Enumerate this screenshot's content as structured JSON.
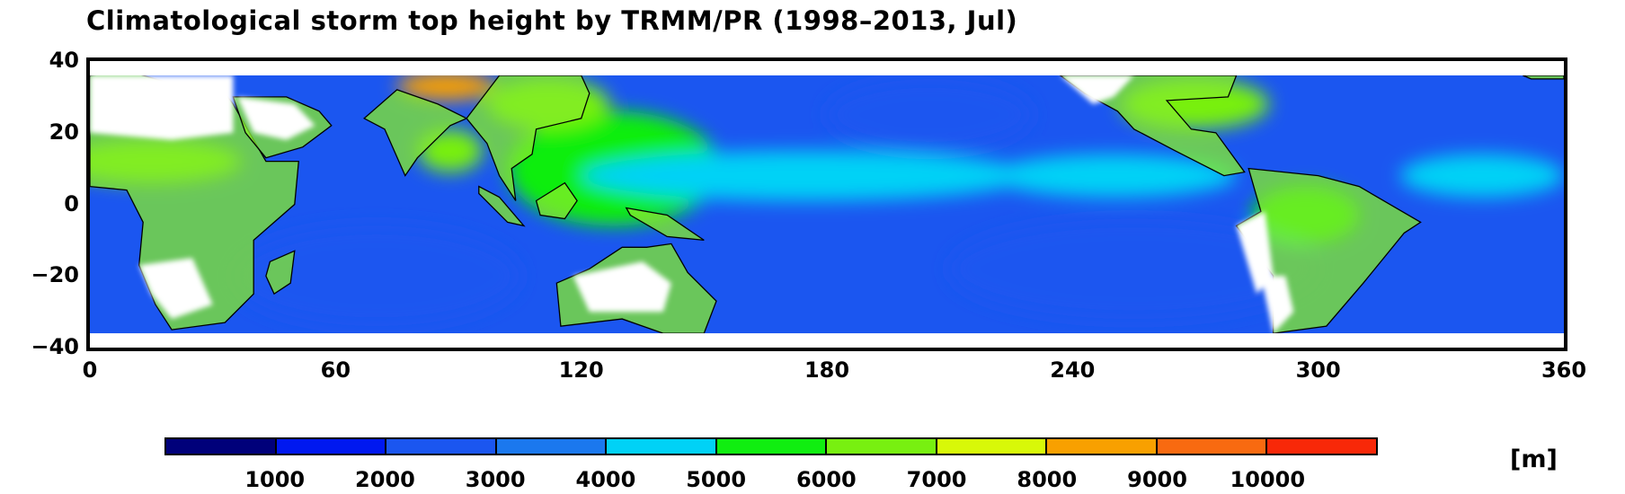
{
  "title": "Climatological storm top height by TRMM/PR (1998–2013, Jul)",
  "map": {
    "lon_range": [
      0,
      360
    ],
    "lat_range": [
      -40,
      40
    ],
    "data_lat_range": [
      -36,
      36
    ],
    "ocean_color": "#1b56f0",
    "land_color": "#ffffff",
    "coastline_color": "#000000"
  },
  "axes": {
    "y_ticks": [
      "40",
      "20",
      "0",
      "−20",
      "−40"
    ],
    "y_values": [
      40,
      20,
      0,
      -20,
      -40
    ],
    "x_ticks": [
      "0",
      "60",
      "120",
      "180",
      "240",
      "300",
      "360"
    ],
    "x_values": [
      0,
      60,
      120,
      180,
      240,
      300,
      360
    ]
  },
  "colorbar": {
    "unit": "[m]",
    "colors": [
      "#00007a",
      "#0018f0",
      "#1b56f0",
      "#1b78ee",
      "#00d2f6",
      "#10ee10",
      "#78f010",
      "#d8f808",
      "#f8a000",
      "#f86a10",
      "#f82808"
    ],
    "labels": [
      "1000",
      "2000",
      "3000",
      "4000",
      "5000",
      "6000",
      "7000",
      "8000",
      "9000",
      "10000"
    ]
  },
  "regions": [
    {
      "name": "warm-pool",
      "lon": 128,
      "lat": 10,
      "rx": 26,
      "ry": 16,
      "color": "#10ee10"
    },
    {
      "name": "itcz-central",
      "lon": 175,
      "lat": 8,
      "rx": 55,
      "ry": 7,
      "color": "#00d2f6"
    },
    {
      "name": "itcz-east",
      "lon": 250,
      "lat": 8,
      "rx": 30,
      "ry": 6,
      "color": "#00d2f6"
    },
    {
      "name": "atlantic-itcz",
      "lon": 340,
      "lat": 8,
      "rx": 20,
      "ry": 6,
      "color": "#00d2f6"
    },
    {
      "name": "south-indian",
      "lon": 70,
      "lat": -20,
      "rx": 35,
      "ry": 14,
      "color": "#1b56f0"
    },
    {
      "name": "se-pacific",
      "lon": 255,
      "lat": -18,
      "rx": 45,
      "ry": 14,
      "color": "#1b56f0"
    },
    {
      "name": "ne-pacific",
      "lon": 205,
      "lat": 25,
      "rx": 25,
      "ry": 10,
      "color": "#1b56f0"
    },
    {
      "name": "bay-of-bengal",
      "lon": 88,
      "lat": 15,
      "rx": 8,
      "ry": 6,
      "color": "#78f010"
    },
    {
      "name": "tibet",
      "lon": 87,
      "lat": 33,
      "rx": 12,
      "ry": 4,
      "color": "#f8a000"
    },
    {
      "name": "china",
      "lon": 112,
      "lat": 28,
      "rx": 15,
      "ry": 7,
      "color": "#78f010"
    },
    {
      "name": "se-us",
      "lon": 270,
      "lat": 28,
      "rx": 18,
      "ry": 7,
      "color": "#78f010"
    },
    {
      "name": "sahel",
      "lon": 15,
      "lat": 12,
      "rx": 22,
      "ry": 6,
      "color": "#78f010"
    },
    {
      "name": "amazon",
      "lon": 297,
      "lat": -3,
      "rx": 13,
      "ry": 8,
      "color": "#10ee10"
    }
  ],
  "land_masses": [
    {
      "name": "africa",
      "coords": [
        [
          0,
          5
        ],
        [
          0,
          36
        ],
        [
          10,
          37
        ],
        [
          25,
          32
        ],
        [
          33,
          31
        ],
        [
          35,
          28
        ],
        [
          43,
          12
        ],
        [
          51,
          12
        ],
        [
          50,
          0
        ],
        [
          40,
          -10
        ],
        [
          40,
          -25
        ],
        [
          33,
          -33
        ],
        [
          20,
          -35
        ],
        [
          16,
          -28
        ],
        [
          12,
          -17
        ],
        [
          13,
          -5
        ],
        [
          9,
          4
        ],
        [
          0,
          5
        ]
      ]
    },
    {
      "name": "arabia",
      "coords": [
        [
          35,
          30
        ],
        [
          48,
          30
        ],
        [
          56,
          26
        ],
        [
          59,
          22
        ],
        [
          52,
          16
        ],
        [
          43,
          13
        ],
        [
          38,
          20
        ],
        [
          35,
          30
        ]
      ]
    },
    {
      "name": "india",
      "coords": [
        [
          67,
          24
        ],
        [
          72,
          21
        ],
        [
          77,
          8
        ],
        [
          80,
          13
        ],
        [
          88,
          22
        ],
        [
          92,
          24
        ],
        [
          85,
          28
        ],
        [
          75,
          32
        ],
        [
          67,
          24
        ]
      ]
    },
    {
      "name": "indochina",
      "coords": [
        [
          92,
          24
        ],
        [
          97,
          17
        ],
        [
          100,
          8
        ],
        [
          104,
          1
        ],
        [
          103,
          10
        ],
        [
          108,
          14
        ],
        [
          109,
          21
        ],
        [
          120,
          24
        ],
        [
          122,
          31
        ],
        [
          120,
          36
        ],
        [
          100,
          36
        ],
        [
          92,
          24
        ]
      ]
    },
    {
      "name": "australia",
      "coords": [
        [
          114,
          -22
        ],
        [
          122,
          -18
        ],
        [
          130,
          -12
        ],
        [
          136,
          -12
        ],
        [
          142,
          -11
        ],
        [
          146,
          -19
        ],
        [
          153,
          -27
        ],
        [
          150,
          -36
        ],
        [
          140,
          -36
        ],
        [
          130,
          -32
        ],
        [
          115,
          -34
        ],
        [
          114,
          -22
        ]
      ]
    },
    {
      "name": "north-america",
      "coords": [
        [
          237,
          36
        ],
        [
          243,
          31
        ],
        [
          251,
          26
        ],
        [
          255,
          21
        ],
        [
          265,
          15
        ],
        [
          277,
          8
        ],
        [
          282,
          9
        ],
        [
          275,
          20
        ],
        [
          269,
          21
        ],
        [
          263,
          29
        ],
        [
          278,
          30
        ],
        [
          280,
          36
        ],
        [
          237,
          36
        ]
      ]
    },
    {
      "name": "south-america",
      "coords": [
        [
          283,
          10
        ],
        [
          286,
          -2
        ],
        [
          280,
          -6
        ],
        [
          289,
          -20
        ],
        [
          289,
          -36
        ],
        [
          302,
          -34
        ],
        [
          311,
          -22
        ],
        [
          321,
          -8
        ],
        [
          325,
          -5
        ],
        [
          310,
          5
        ],
        [
          300,
          8
        ],
        [
          283,
          10
        ]
      ]
    },
    {
      "name": "madagascar",
      "coords": [
        [
          44,
          -16
        ],
        [
          50,
          -13
        ],
        [
          49,
          -22
        ],
        [
          45,
          -25
        ],
        [
          43,
          -20
        ],
        [
          44,
          -16
        ]
      ]
    },
    {
      "name": "borneo",
      "coords": [
        [
          109,
          1
        ],
        [
          116,
          6
        ],
        [
          119,
          1
        ],
        [
          116,
          -4
        ],
        [
          110,
          -3
        ],
        [
          109,
          1
        ]
      ]
    },
    {
      "name": "sumatra",
      "coords": [
        [
          95,
          5
        ],
        [
          100,
          2
        ],
        [
          106,
          -6
        ],
        [
          102,
          -5
        ],
        [
          95,
          3
        ],
        [
          95,
          5
        ]
      ]
    },
    {
      "name": "new-guinea",
      "coords": [
        [
          131,
          -1
        ],
        [
          141,
          -3
        ],
        [
          150,
          -10
        ],
        [
          141,
          -9
        ],
        [
          132,
          -3
        ],
        [
          131,
          -1
        ]
      ]
    },
    {
      "name": "iberia-europe",
      "coords": [
        [
          350,
          36
        ],
        [
          354,
          36
        ],
        [
          358,
          36
        ],
        [
          360,
          36
        ],
        [
          360,
          35
        ],
        [
          352,
          35
        ],
        [
          350,
          36
        ]
      ]
    }
  ],
  "deserts": [
    {
      "name": "sahara",
      "coords": [
        [
          0,
          20
        ],
        [
          0,
          36
        ],
        [
          35,
          36
        ],
        [
          35,
          20
        ],
        [
          20,
          18
        ],
        [
          0,
          20
        ]
      ]
    },
    {
      "name": "kalahari",
      "coords": [
        [
          12,
          -17
        ],
        [
          25,
          -15
        ],
        [
          30,
          -28
        ],
        [
          20,
          -32
        ],
        [
          15,
          -25
        ],
        [
          12,
          -17
        ]
      ]
    },
    {
      "name": "arabia-desert",
      "coords": [
        [
          36,
          30
        ],
        [
          50,
          28
        ],
        [
          55,
          22
        ],
        [
          48,
          18
        ],
        [
          40,
          20
        ],
        [
          36,
          30
        ]
      ]
    },
    {
      "name": "aus-interior",
      "coords": [
        [
          118,
          -20
        ],
        [
          135,
          -16
        ],
        [
          142,
          -22
        ],
        [
          140,
          -30
        ],
        [
          122,
          -30
        ],
        [
          118,
          -20
        ]
      ]
    },
    {
      "name": "sw-us",
      "coords": [
        [
          237,
          36
        ],
        [
          245,
          28
        ],
        [
          250,
          30
        ],
        [
          255,
          36
        ],
        [
          237,
          36
        ]
      ]
    },
    {
      "name": "sp-desert",
      "coords": [
        [
          280,
          -6
        ],
        [
          287,
          -2
        ],
        [
          289,
          -20
        ],
        [
          285,
          -25
        ],
        [
          280,
          -6
        ]
      ]
    },
    {
      "name": "n-chile",
      "coords": [
        [
          286,
          -20
        ],
        [
          292,
          -20
        ],
        [
          294,
          -30
        ],
        [
          289,
          -36
        ],
        [
          286,
          -20
        ]
      ]
    }
  ]
}
